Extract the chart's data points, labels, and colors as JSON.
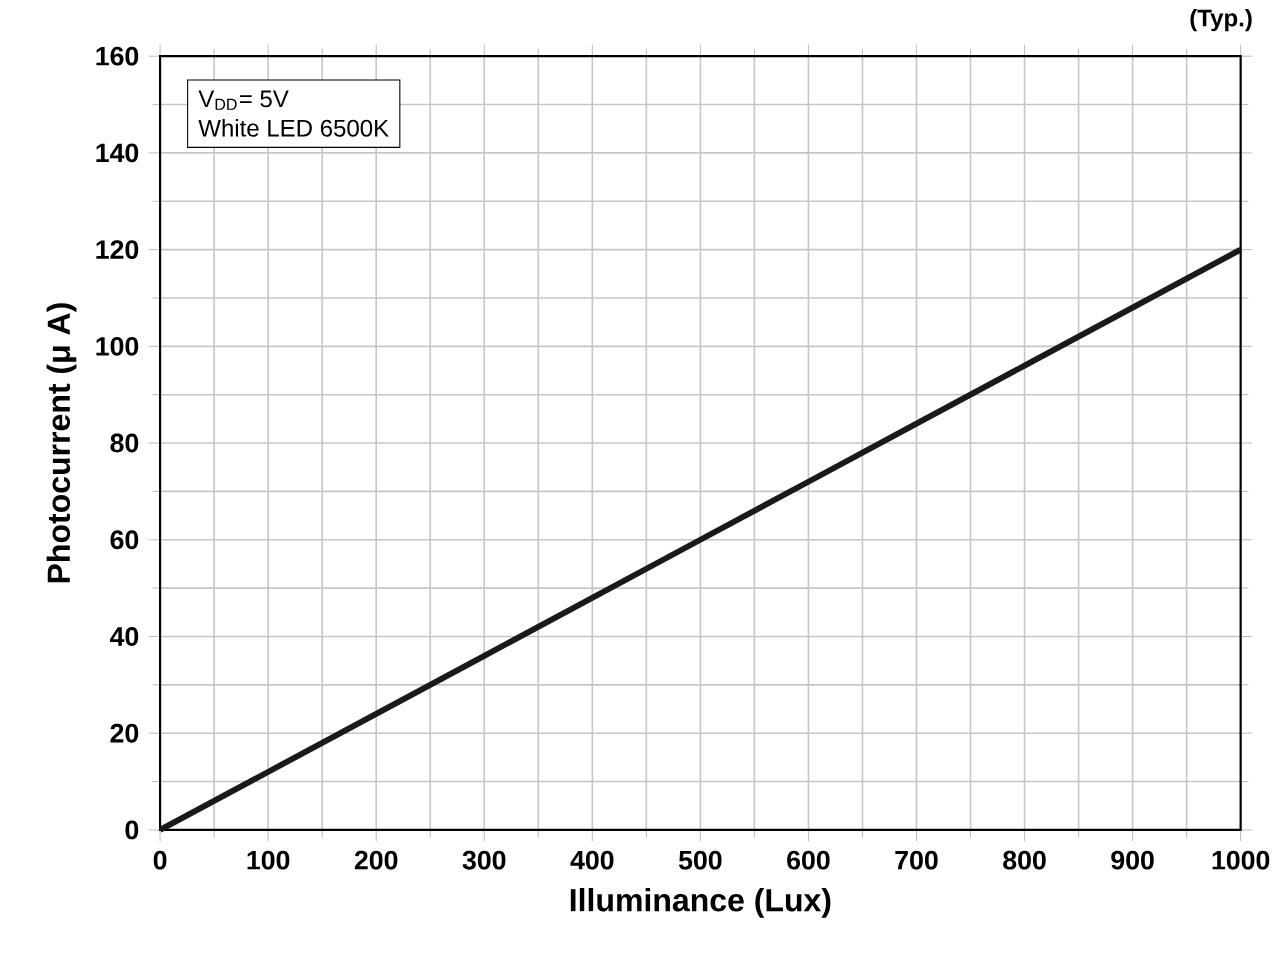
{
  "chart_data": {
    "type": "line",
    "xlabel": "Illuminance (Lux)",
    "ylabel": "Photocurrent (μ A)",
    "x": [
      0,
      100,
      200,
      300,
      400,
      500,
      600,
      700,
      800,
      900,
      1000
    ],
    "series": [
      {
        "color": "#1a1a1a",
        "values": [
          0,
          12,
          24,
          36,
          48,
          60,
          72,
          84,
          96,
          108,
          120
        ]
      }
    ],
    "xlim": [
      0,
      1000
    ],
    "ylim": [
      0,
      160
    ],
    "xticks": [
      0,
      100,
      200,
      300,
      400,
      500,
      600,
      700,
      800,
      900,
      1000
    ],
    "yticks": [
      0,
      20,
      40,
      60,
      80,
      100,
      120,
      140,
      160
    ],
    "grid": true,
    "line_style": "solid",
    "marker": "none",
    "annotations": [
      "(Typ.)",
      "V$_{DD}$= 5V",
      "White LED 6500K"
    ]
  }
}
